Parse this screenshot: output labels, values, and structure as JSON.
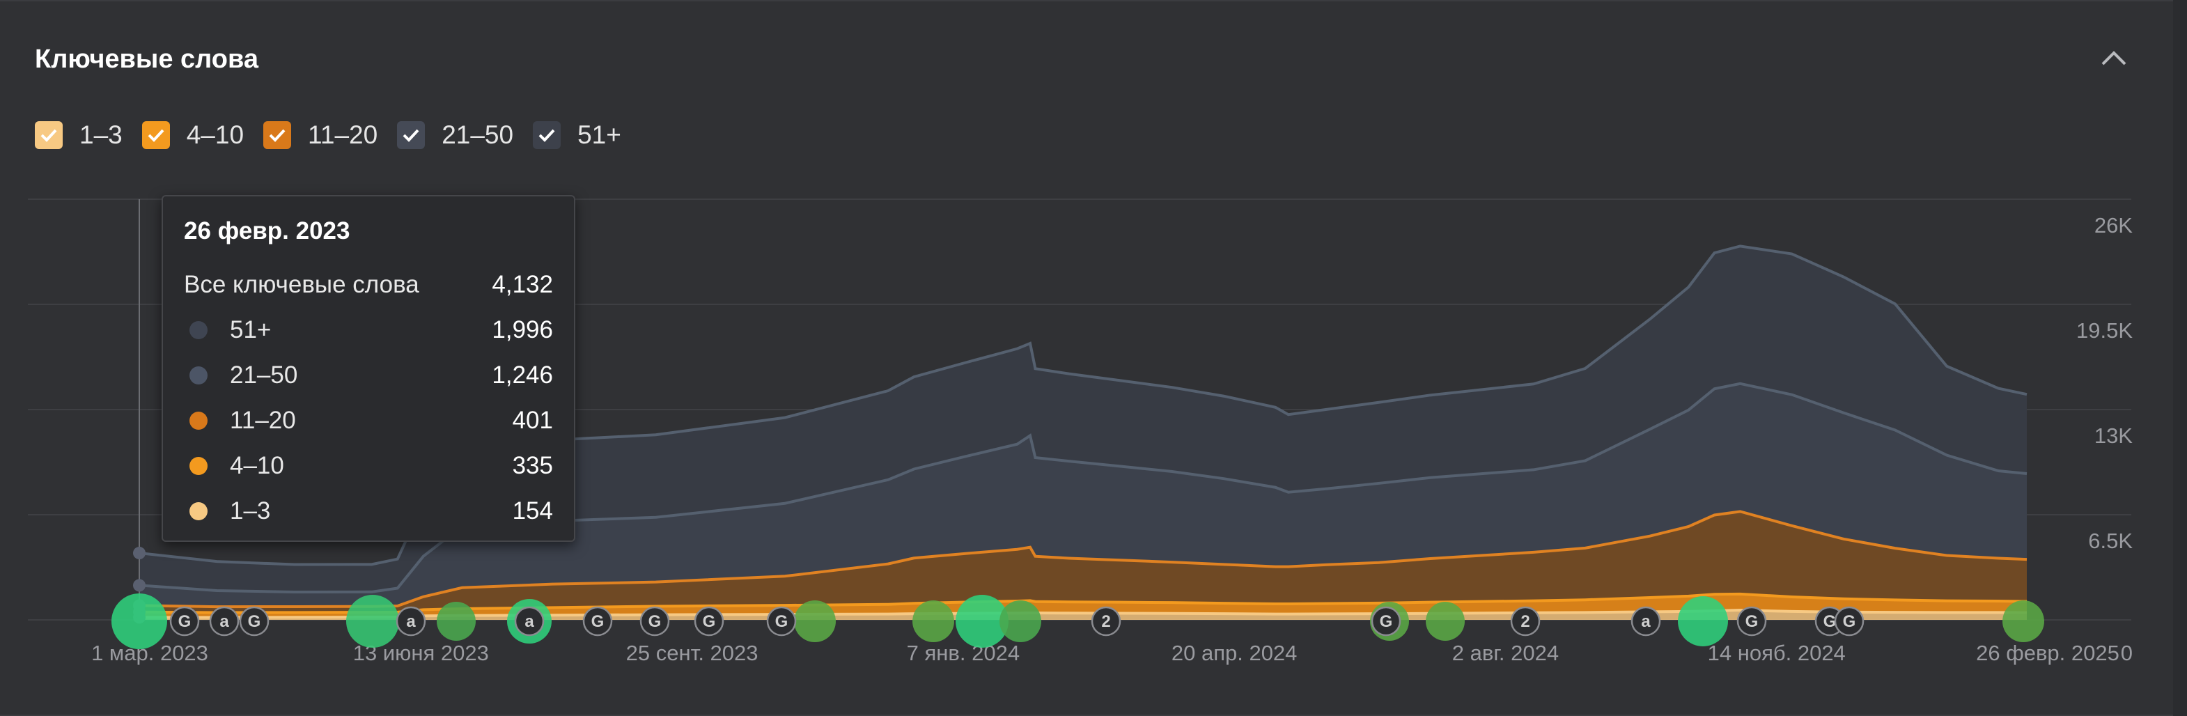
{
  "panel": {
    "title": "Ключевые слова"
  },
  "legend": [
    {
      "label": "1–3",
      "color": "#f7c983",
      "checked": true
    },
    {
      "label": "4–10",
      "color": "#f39a1f",
      "checked": true
    },
    {
      "label": "11–20",
      "color": "#d9791a",
      "checked": true
    },
    {
      "label": "21–50",
      "color": "#454a56",
      "checked": true
    },
    {
      "label": "51+",
      "color": "#3d414b",
      "checked": true
    }
  ],
  "tooltip": {
    "date": "26 февр. 2023",
    "total_label": "Все ключевые слова",
    "total_value": "4,132",
    "rows": [
      {
        "label": "51+",
        "value": "1,996",
        "color": "#3f4552"
      },
      {
        "label": "21–50",
        "value": "1,246",
        "color": "#4c5566"
      },
      {
        "label": "11–20",
        "value": "401",
        "color": "#d9791a"
      },
      {
        "label": "4–10",
        "value": "335",
        "color": "#f39a1f"
      },
      {
        "label": "1–3",
        "value": "154",
        "color": "#f7c983"
      }
    ]
  },
  "chart_data": {
    "type": "area",
    "stacked": true,
    "x_tick_labels": [
      "1 мар. 2023",
      "13 июня 2023",
      "25 сент. 2023",
      "7 янв. 2024",
      "20 апр. 2024",
      "2 авг. 2024",
      "14 нояб. 2024",
      "26 февр. 2025"
    ],
    "y_tick_labels": [
      "0",
      "6.5K",
      "13K",
      "19.5K",
      "26K"
    ],
    "ylim": [
      0,
      26000
    ],
    "grid": true,
    "x": [
      0,
      30,
      60,
      90,
      100,
      110,
      125,
      160,
      200,
      250,
      290,
      300,
      320,
      340,
      345,
      347,
      360,
      380,
      400,
      420,
      440,
      445,
      460,
      480,
      500,
      540,
      560,
      585,
      600,
      610,
      620,
      640,
      660,
      680,
      700,
      720,
      731
    ],
    "series": [
      {
        "name": "1–3",
        "color": "#f7c983",
        "values": [
          154,
          150,
          160,
          170,
          180,
          250,
          270,
          290,
          320,
          340,
          360,
          380,
          400,
          420,
          430,
          430,
          420,
          410,
          400,
          380,
          360,
          360,
          370,
          380,
          400,
          440,
          460,
          500,
          520,
          560,
          600,
          520,
          480,
          470,
          460,
          460,
          450
        ]
      },
      {
        "name": "4–10",
        "color": "#f39a1f",
        "values": [
          335,
          300,
          300,
          300,
          300,
          380,
          420,
          470,
          520,
          560,
          600,
          640,
          700,
          740,
          760,
          700,
          690,
          680,
          670,
          650,
          630,
          630,
          640,
          660,
          690,
          740,
          780,
          880,
          950,
          1020,
          1000,
          900,
          820,
          760,
          720,
          700,
          690
        ]
      },
      {
        "name": "11–20",
        "color": "#d9791a",
        "values": [
          401,
          360,
          360,
          360,
          380,
          800,
          1300,
          1450,
          1500,
          1800,
          2500,
          2800,
          3000,
          3200,
          3300,
          2800,
          2700,
          2600,
          2500,
          2400,
          2300,
          2300,
          2400,
          2500,
          2700,
          3000,
          3200,
          3800,
          4300,
          4900,
          5100,
          4400,
          3700,
          3200,
          2800,
          2650,
          2600
        ]
      },
      {
        "name": "21–50",
        "color": "#454a56",
        "values": [
          1246,
          1000,
          900,
          900,
          1100,
          2500,
          3800,
          3900,
          4000,
          4500,
          5200,
          5500,
          6000,
          6500,
          6900,
          6100,
          6000,
          5800,
          5600,
          5300,
          4900,
          4600,
          4700,
          4900,
          5000,
          5100,
          5400,
          6600,
          7200,
          7800,
          7900,
          8100,
          7800,
          7300,
          6200,
          5400,
          5300
        ]
      },
      {
        "name": "51+",
        "color": "#3d414b",
        "values": [
          1996,
          1800,
          1700,
          1700,
          1800,
          3300,
          4900,
          5000,
          5100,
          5300,
          5500,
          5700,
          5800,
          5900,
          5700,
          5500,
          5400,
          5300,
          5200,
          5100,
          4950,
          4800,
          4900,
          5000,
          5100,
          5300,
          5700,
          6800,
          7600,
          8400,
          8500,
          8700,
          8400,
          7800,
          5500,
          5100,
          4900
        ]
      }
    ]
  }
}
